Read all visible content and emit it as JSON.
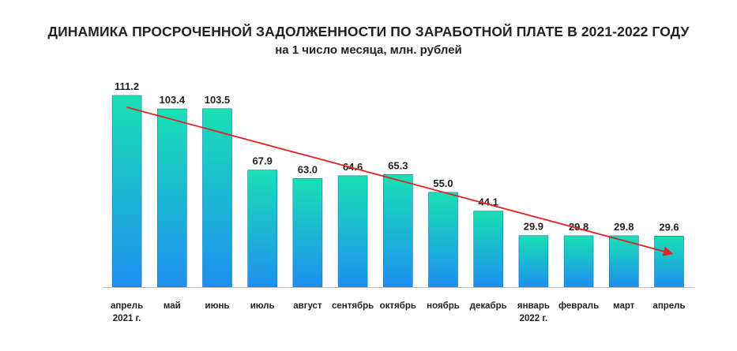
{
  "title": "ДИНАМИКА ПРОСРОЧЕННОЙ ЗАДОЛЖЕННОСТИ ПО ЗАРАБОТНОЙ ПЛАТЕ В 2021-2022 ГОДУ",
  "subtitle": "на 1 число месяца, млн. рублей",
  "chart_data": {
    "type": "bar",
    "title": "ДИНАМИКА ПРОСРОЧЕННОЙ ЗАДОЛЖЕННОСТИ ПО ЗАРАБОТНОЙ ПЛАТЕ В 2021-2022 ГОДУ",
    "subtitle": "на 1 число месяца, млн. рублей",
    "categories": [
      [
        "апрель",
        "2021 г."
      ],
      [
        "май"
      ],
      [
        "июнь"
      ],
      [
        "июль"
      ],
      [
        "август"
      ],
      [
        "сентябрь"
      ],
      [
        "октябрь"
      ],
      [
        "ноябрь"
      ],
      [
        "декабрь"
      ],
      [
        "январь",
        "2022 г."
      ],
      [
        "февраль"
      ],
      [
        "март"
      ],
      [
        "апрель"
      ]
    ],
    "values": [
      111.2,
      103.4,
      103.5,
      67.9,
      63.0,
      64.6,
      65.3,
      55.0,
      44.1,
      29.9,
      29.8,
      29.8,
      29.6
    ],
    "value_labels": [
      "111.2",
      "103.4",
      "103.5",
      "67.9",
      "63.0",
      "64.6",
      "65.3",
      "55.0",
      "44.1",
      "29.9",
      "29.8",
      "29.8",
      "29.6"
    ],
    "ylim": [
      0,
      111.2
    ],
    "grid": false,
    "legend": "none",
    "trend_arrow": true,
    "colors": {
      "bar_top": "#19e0b4",
      "bar_bottom": "#1f8ff0",
      "bar_stroke": "#1573b8",
      "arrow": "#e02222",
      "axis": "#bdbdbd"
    }
  }
}
